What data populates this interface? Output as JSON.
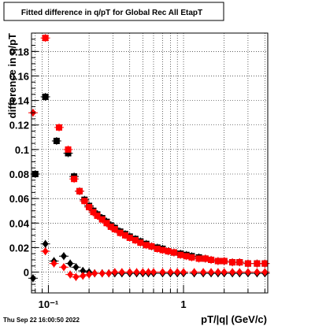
{
  "chart_data": {
    "type": "scatter",
    "title": "Fitted difference in q/pT for Global Rec All EtapT",
    "xlabel": "pT/|q| (GeV/c)",
    "ylabel": "difference in q/pT",
    "xscale": "log",
    "xlim": [
      0.075,
      4.2
    ],
    "ylim": [
      -0.017,
      0.195
    ],
    "x_tick_labels": [
      "10⁻¹",
      "1"
    ],
    "y_tick_labels": [
      "0",
      "0.02",
      "0.04",
      "0.06",
      "0.08",
      "0.1",
      "0.12",
      "0.14",
      "0.16",
      "0.18"
    ],
    "grid": true,
    "timestamp": "Thu Sep 22 16:00:50 2022",
    "series": [
      {
        "marker": "square",
        "color": "#000000",
        "points": [
          [
            0.08,
            0.08
          ],
          [
            0.095,
            0.143
          ],
          [
            0.115,
            0.107
          ],
          [
            0.14,
            0.097
          ],
          [
            0.155,
            0.078
          ],
          [
            0.17,
            0.066
          ],
          [
            0.185,
            0.059
          ],
          [
            0.2,
            0.054
          ],
          [
            0.215,
            0.05
          ],
          [
            0.23,
            0.047
          ],
          [
            0.25,
            0.044
          ],
          [
            0.27,
            0.041
          ],
          [
            0.29,
            0.038
          ],
          [
            0.31,
            0.036
          ],
          [
            0.34,
            0.033
          ],
          [
            0.37,
            0.031
          ],
          [
            0.4,
            0.029
          ],
          [
            0.44,
            0.027
          ],
          [
            0.48,
            0.025
          ],
          [
            0.53,
            0.023
          ],
          [
            0.58,
            0.021
          ],
          [
            0.64,
            0.02
          ],
          [
            0.7,
            0.019
          ],
          [
            0.77,
            0.017
          ],
          [
            0.85,
            0.016
          ],
          [
            0.95,
            0.015
          ],
          [
            1.05,
            0.014
          ],
          [
            1.15,
            0.013
          ],
          [
            1.3,
            0.012
          ],
          [
            1.45,
            0.011
          ],
          [
            1.6,
            0.01
          ],
          [
            1.8,
            0.009
          ],
          [
            2.0,
            0.009
          ],
          [
            2.3,
            0.008
          ],
          [
            2.6,
            0.008
          ],
          [
            3.0,
            0.007
          ],
          [
            3.5,
            0.007
          ],
          [
            4.0,
            0.007
          ]
        ]
      },
      {
        "marker": "square",
        "color": "#ff0000",
        "points": [
          [
            0.095,
            0.191
          ],
          [
            0.12,
            0.118
          ],
          [
            0.14,
            0.1
          ],
          [
            0.155,
            0.076
          ],
          [
            0.17,
            0.066
          ],
          [
            0.185,
            0.058
          ],
          [
            0.2,
            0.053
          ],
          [
            0.215,
            0.049
          ],
          [
            0.23,
            0.046
          ],
          [
            0.25,
            0.043
          ],
          [
            0.27,
            0.04
          ],
          [
            0.29,
            0.037
          ],
          [
            0.31,
            0.035
          ],
          [
            0.34,
            0.032
          ],
          [
            0.37,
            0.03
          ],
          [
            0.4,
            0.028
          ],
          [
            0.44,
            0.026
          ],
          [
            0.48,
            0.024
          ],
          [
            0.53,
            0.022
          ],
          [
            0.58,
            0.021
          ],
          [
            0.64,
            0.019
          ],
          [
            0.7,
            0.018
          ],
          [
            0.77,
            0.017
          ],
          [
            0.85,
            0.016
          ],
          [
            0.95,
            0.014
          ],
          [
            1.05,
            0.013
          ],
          [
            1.15,
            0.012
          ],
          [
            1.3,
            0.011
          ],
          [
            1.45,
            0.011
          ],
          [
            1.6,
            0.01
          ],
          [
            1.8,
            0.009
          ],
          [
            2.0,
            0.009
          ],
          [
            2.3,
            0.008
          ],
          [
            2.6,
            0.008
          ],
          [
            3.0,
            0.007
          ],
          [
            3.5,
            0.007
          ],
          [
            4.0,
            0.007
          ]
        ]
      },
      {
        "marker": "diamond",
        "color": "#000000",
        "points": [
          [
            0.077,
            -0.005
          ],
          [
            0.095,
            0.023
          ],
          [
            0.11,
            0.009
          ],
          [
            0.13,
            0.013
          ],
          [
            0.145,
            0.007
          ],
          [
            0.16,
            0.004
          ],
          [
            0.18,
            0.001
          ],
          [
            0.2,
            0.0
          ],
          [
            0.22,
            -0.001
          ],
          [
            0.25,
            -0.001
          ],
          [
            0.28,
            -0.001
          ],
          [
            0.31,
            -0.001
          ],
          [
            0.35,
            -0.001
          ],
          [
            0.4,
            -0.001
          ],
          [
            0.45,
            -0.001
          ],
          [
            0.5,
            -0.001
          ],
          [
            0.55,
            -0.001
          ],
          [
            0.6,
            -0.001
          ],
          [
            0.7,
            -0.001
          ],
          [
            0.8,
            -0.001
          ],
          [
            0.9,
            -0.001
          ],
          [
            1.0,
            -0.001
          ],
          [
            1.2,
            -0.001
          ],
          [
            1.4,
            -0.001
          ],
          [
            1.6,
            -0.001
          ],
          [
            1.8,
            -0.001
          ],
          [
            2.0,
            -0.001
          ],
          [
            2.3,
            -0.001
          ],
          [
            2.6,
            -0.001
          ],
          [
            3.0,
            -0.001
          ],
          [
            3.5,
            -0.001
          ],
          [
            4.0,
            -0.001
          ]
        ]
      },
      {
        "marker": "diamond",
        "color": "#ff0000",
        "points": [
          [
            0.077,
            0.13
          ],
          [
            0.095,
            0.017
          ],
          [
            0.11,
            0.007
          ],
          [
            0.13,
            0.004
          ],
          [
            0.145,
            -0.002
          ],
          [
            0.16,
            -0.004
          ],
          [
            0.18,
            -0.003
          ],
          [
            0.2,
            -0.002
          ],
          [
            0.22,
            -0.001
          ],
          [
            0.25,
            -0.001
          ],
          [
            0.28,
            -0.001
          ],
          [
            0.31,
            0.0
          ],
          [
            0.35,
            0.0
          ],
          [
            0.4,
            0.0
          ],
          [
            0.45,
            0.0
          ],
          [
            0.5,
            0.0
          ],
          [
            0.55,
            0.0
          ],
          [
            0.6,
            0.0
          ],
          [
            0.7,
            0.0
          ],
          [
            0.8,
            0.0
          ],
          [
            0.9,
            0.0
          ],
          [
            1.0,
            0.0
          ],
          [
            1.2,
            0.0
          ],
          [
            1.4,
            0.0
          ],
          [
            1.6,
            0.0
          ],
          [
            1.8,
            0.0
          ],
          [
            2.0,
            0.0
          ],
          [
            2.3,
            0.0
          ],
          [
            2.6,
            0.0
          ],
          [
            3.0,
            0.0
          ],
          [
            3.5,
            0.0
          ],
          [
            4.0,
            0.0
          ]
        ]
      }
    ]
  }
}
